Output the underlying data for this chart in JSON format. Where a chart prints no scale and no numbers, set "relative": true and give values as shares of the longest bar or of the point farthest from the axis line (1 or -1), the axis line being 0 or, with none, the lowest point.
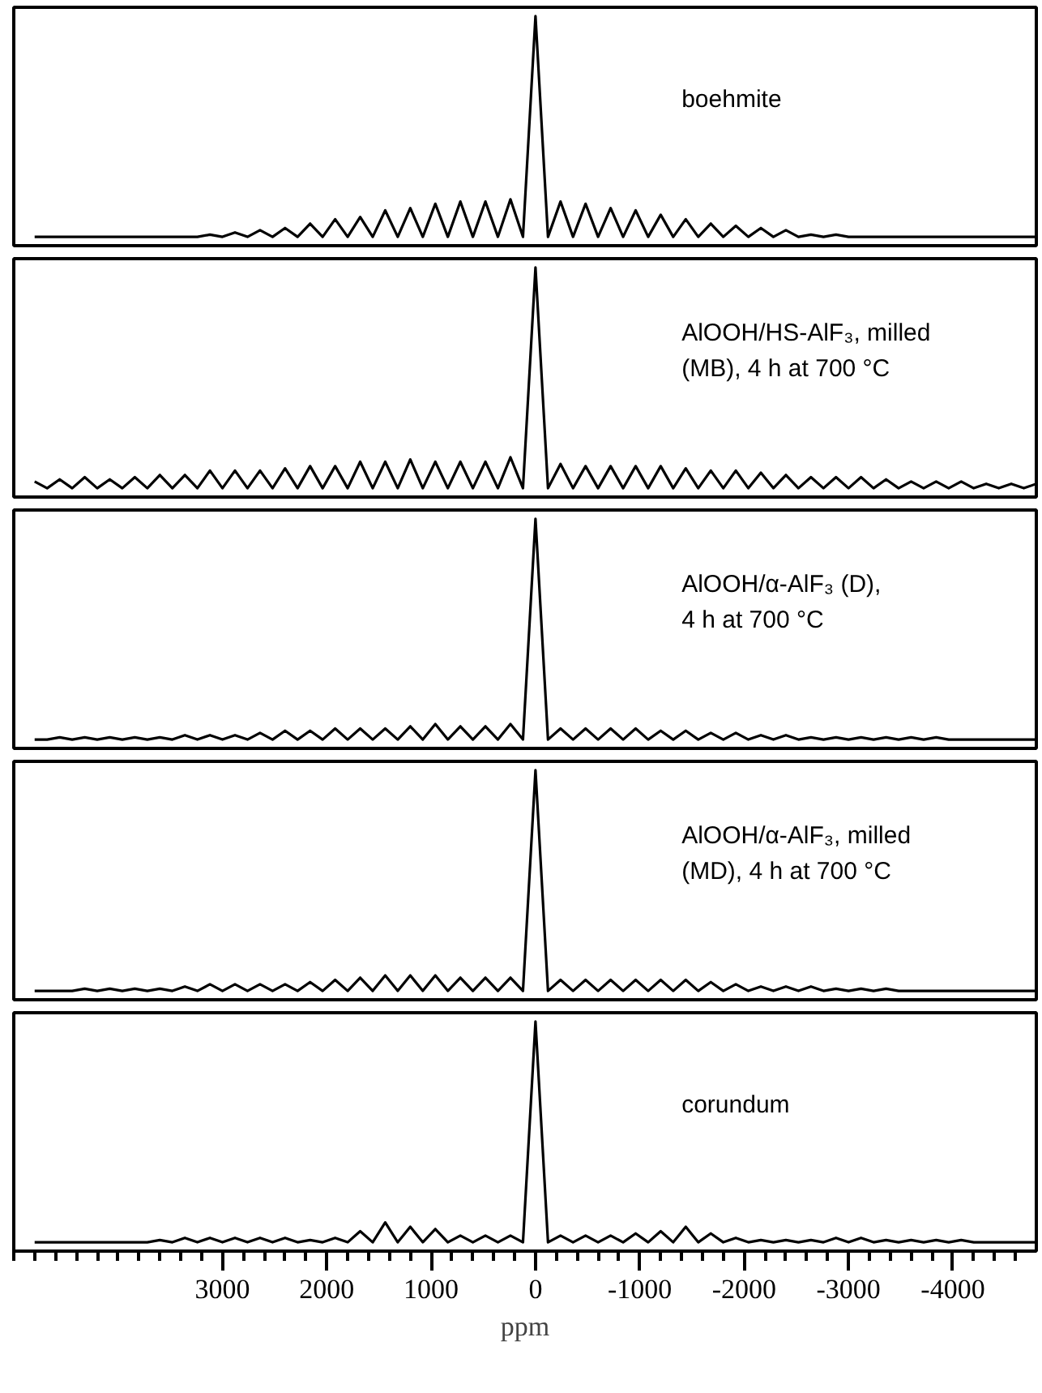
{
  "chart_data": [
    {
      "type": "line",
      "relative": true,
      "tick_labels": false,
      "xlim": [
        5000,
        -4800
      ],
      "x": [
        4800,
        4680,
        4560,
        4440,
        4320,
        4200,
        4080,
        3960,
        3840,
        3720,
        3600,
        3480,
        3360,
        3240,
        3120,
        3000,
        2880,
        2760,
        2640,
        2520,
        2400,
        2280,
        2160,
        2040,
        1920,
        1800,
        1680,
        1560,
        1440,
        1320,
        1200,
        1080,
        960,
        840,
        720,
        600,
        480,
        360,
        240,
        120,
        0,
        -120,
        -240,
        -360,
        -480,
        -600,
        -720,
        -840,
        -960,
        -1080,
        -1200,
        -1320,
        -1440,
        -1560,
        -1680,
        -1800,
        -1920,
        -2040,
        -2160,
        -2280,
        -2400,
        -2520,
        -2640,
        -2760,
        -2880,
        -3000,
        -3120,
        -3240,
        -3360,
        -3480,
        -3600,
        -3720,
        -3840,
        -3960,
        -4080,
        -4200,
        -4320,
        -4440,
        -4560,
        -4680,
        -4800
      ],
      "series": [
        {
          "name": "boehmite",
          "color": "#000000",
          "values": [
            0,
            0,
            0,
            0,
            0,
            0,
            0,
            0,
            0,
            0,
            0,
            0,
            0,
            0,
            0.01,
            0,
            0.02,
            0,
            0.03,
            0,
            0.04,
            0,
            0.06,
            0,
            0.08,
            0,
            0.09,
            0,
            0.12,
            0,
            0.13,
            0,
            0.15,
            0,
            0.16,
            0,
            0.16,
            0,
            0.17,
            0,
            1,
            0,
            0.16,
            0,
            0.15,
            0,
            0.13,
            0,
            0.12,
            0,
            0.1,
            0,
            0.08,
            0,
            0.06,
            0,
            0.05,
            0,
            0.04,
            0,
            0.03,
            0,
            0.01,
            0,
            0.01,
            0,
            0,
            0,
            0,
            0,
            0,
            0,
            0,
            0,
            0,
            0,
            0,
            0,
            0,
            0,
            0
          ]
        }
      ]
    },
    {
      "type": "line",
      "relative": true,
      "tick_labels": false,
      "xlim": [
        5000,
        -4800
      ],
      "x": [
        4800,
        4680,
        4560,
        4440,
        4320,
        4200,
        4080,
        3960,
        3840,
        3720,
        3600,
        3480,
        3360,
        3240,
        3120,
        3000,
        2880,
        2760,
        2640,
        2520,
        2400,
        2280,
        2160,
        2040,
        1920,
        1800,
        1680,
        1560,
        1440,
        1320,
        1200,
        1080,
        960,
        840,
        720,
        600,
        480,
        360,
        240,
        120,
        0,
        -120,
        -240,
        -360,
        -480,
        -600,
        -720,
        -840,
        -960,
        -1080,
        -1200,
        -1320,
        -1440,
        -1560,
        -1680,
        -1800,
        -1920,
        -2040,
        -2160,
        -2280,
        -2400,
        -2520,
        -2640,
        -2760,
        -2880,
        -3000,
        -3120,
        -3240,
        -3360,
        -3480,
        -3600,
        -3720,
        -3840,
        -3960,
        -4080,
        -4200,
        -4320,
        -4440,
        -4560,
        -4680,
        -4800
      ],
      "series": [
        {
          "name": "AlOOH/HS-AlF₃, milled\n(MB), 4 h at 700 °C",
          "color": "#000000",
          "values": [
            0.03,
            0,
            0.04,
            0,
            0.05,
            0,
            0.04,
            0,
            0.05,
            0,
            0.06,
            0,
            0.06,
            0,
            0.08,
            0,
            0.08,
            0,
            0.08,
            0,
            0.09,
            0,
            0.1,
            0,
            0.1,
            0,
            0.12,
            0,
            0.12,
            0,
            0.13,
            0,
            0.12,
            0,
            0.12,
            0,
            0.12,
            0,
            0.14,
            0,
            1,
            0,
            0.11,
            0,
            0.1,
            0,
            0.1,
            0,
            0.1,
            0,
            0.1,
            0,
            0.09,
            0,
            0.08,
            0,
            0.08,
            0,
            0.07,
            0,
            0.06,
            0,
            0.05,
            0,
            0.05,
            0,
            0.05,
            0,
            0.04,
            0,
            0.03,
            0,
            0.03,
            0,
            0.03,
            0,
            0.02,
            0,
            0.02,
            0,
            0.02
          ]
        }
      ]
    },
    {
      "type": "line",
      "relative": true,
      "tick_labels": false,
      "xlim": [
        5000,
        -4800
      ],
      "x": [
        4800,
        4680,
        4560,
        4440,
        4320,
        4200,
        4080,
        3960,
        3840,
        3720,
        3600,
        3480,
        3360,
        3240,
        3120,
        3000,
        2880,
        2760,
        2640,
        2520,
        2400,
        2280,
        2160,
        2040,
        1920,
        1800,
        1680,
        1560,
        1440,
        1320,
        1200,
        1080,
        960,
        840,
        720,
        600,
        480,
        360,
        240,
        120,
        0,
        -120,
        -240,
        -360,
        -480,
        -600,
        -720,
        -840,
        -960,
        -1080,
        -1200,
        -1320,
        -1440,
        -1560,
        -1680,
        -1800,
        -1920,
        -2040,
        -2160,
        -2280,
        -2400,
        -2520,
        -2640,
        -2760,
        -2880,
        -3000,
        -3120,
        -3240,
        -3360,
        -3480,
        -3600,
        -3720,
        -3840,
        -3960,
        -4080,
        -4200,
        -4320,
        -4440,
        -4560,
        -4680,
        -4800
      ],
      "series": [
        {
          "name": "AlOOH/α-AlF₃ (D),\n4 h at 700 °C",
          "color": "#000000",
          "values": [
            0,
            0,
            0.01,
            0,
            0.01,
            0,
            0.01,
            0,
            0.01,
            0,
            0.01,
            0,
            0.02,
            0,
            0.02,
            0,
            0.02,
            0,
            0.03,
            0,
            0.04,
            0,
            0.04,
            0,
            0.05,
            0,
            0.05,
            0,
            0.05,
            0,
            0.06,
            0,
            0.07,
            0,
            0.06,
            0,
            0.06,
            0,
            0.07,
            0,
            1,
            0,
            0.05,
            0,
            0.05,
            0,
            0.05,
            0,
            0.05,
            0,
            0.04,
            0,
            0.04,
            0,
            0.03,
            0,
            0.03,
            0,
            0.02,
            0,
            0.02,
            0,
            0.01,
            0,
            0.01,
            0,
            0.01,
            0,
            0.01,
            0,
            0.01,
            0,
            0.01,
            0,
            0,
            0,
            0,
            0,
            0,
            0,
            0
          ]
        }
      ]
    },
    {
      "type": "line",
      "relative": true,
      "tick_labels": false,
      "xlim": [
        5000,
        -4800
      ],
      "x": [
        4800,
        4680,
        4560,
        4440,
        4320,
        4200,
        4080,
        3960,
        3840,
        3720,
        3600,
        3480,
        3360,
        3240,
        3120,
        3000,
        2880,
        2760,
        2640,
        2520,
        2400,
        2280,
        2160,
        2040,
        1920,
        1800,
        1680,
        1560,
        1440,
        1320,
        1200,
        1080,
        960,
        840,
        720,
        600,
        480,
        360,
        240,
        120,
        0,
        -120,
        -240,
        -360,
        -480,
        -600,
        -720,
        -840,
        -960,
        -1080,
        -1200,
        -1320,
        -1440,
        -1560,
        -1680,
        -1800,
        -1920,
        -2040,
        -2160,
        -2280,
        -2400,
        -2520,
        -2640,
        -2760,
        -2880,
        -3000,
        -3120,
        -3240,
        -3360,
        -3480,
        -3600,
        -3720,
        -3840,
        -3960,
        -4080,
        -4200,
        -4320,
        -4440,
        -4560,
        -4680,
        -4800
      ],
      "series": [
        {
          "name": "AlOOH/α-AlF₃, milled\n(MD), 4 h at 700 °C",
          "color": "#000000",
          "values": [
            0,
            0,
            0,
            0,
            0.01,
            0,
            0.01,
            0,
            0.01,
            0,
            0.01,
            0,
            0.02,
            0,
            0.03,
            0,
            0.03,
            0,
            0.03,
            0,
            0.03,
            0,
            0.04,
            0,
            0.05,
            0,
            0.06,
            0,
            0.07,
            0,
            0.07,
            0,
            0.07,
            0,
            0.06,
            0,
            0.06,
            0,
            0.06,
            0,
            1,
            0,
            0.05,
            0,
            0.05,
            0,
            0.05,
            0,
            0.05,
            0,
            0.05,
            0,
            0.05,
            0,
            0.04,
            0,
            0.03,
            0,
            0.02,
            0,
            0.02,
            0,
            0.02,
            0,
            0.01,
            0,
            0.01,
            0,
            0.01,
            0,
            0,
            0,
            0,
            0,
            0,
            0,
            0,
            0,
            0,
            0,
            0
          ]
        }
      ]
    },
    {
      "type": "line",
      "relative": true,
      "tick_labels": "x",
      "xlabel": "ppm",
      "xlim": [
        5000,
        -4800
      ],
      "xticks": [
        3000,
        2000,
        1000,
        0,
        -1000,
        -2000,
        -3000,
        -4000
      ],
      "x": [
        4800,
        4680,
        4560,
        4440,
        4320,
        4200,
        4080,
        3960,
        3840,
        3720,
        3600,
        3480,
        3360,
        3240,
        3120,
        3000,
        2880,
        2760,
        2640,
        2520,
        2400,
        2280,
        2160,
        2040,
        1920,
        1800,
        1680,
        1560,
        1440,
        1320,
        1200,
        1080,
        960,
        840,
        720,
        600,
        480,
        360,
        240,
        120,
        0,
        -120,
        -240,
        -360,
        -480,
        -600,
        -720,
        -840,
        -960,
        -1080,
        -1200,
        -1320,
        -1440,
        -1560,
        -1680,
        -1800,
        -1920,
        -2040,
        -2160,
        -2280,
        -2400,
        -2520,
        -2640,
        -2760,
        -2880,
        -3000,
        -3120,
        -3240,
        -3360,
        -3480,
        -3600,
        -3720,
        -3840,
        -3960,
        -4080,
        -4200,
        -4320,
        -4440,
        -4560,
        -4680,
        -4800
      ],
      "series": [
        {
          "name": "corundum",
          "color": "#000000",
          "values": [
            0,
            0,
            0,
            0,
            0,
            0,
            0,
            0,
            0,
            0,
            0.01,
            0,
            0.02,
            0,
            0.02,
            0,
            0.02,
            0,
            0.02,
            0,
            0.02,
            0,
            0.01,
            0,
            0.02,
            0,
            0.05,
            0,
            0.09,
            0,
            0.07,
            0,
            0.06,
            0,
            0.03,
            0,
            0.03,
            0,
            0.03,
            0,
            1,
            0,
            0.03,
            0,
            0.03,
            0,
            0.03,
            0,
            0.04,
            0,
            0.05,
            0,
            0.07,
            0,
            0.04,
            0,
            0.02,
            0,
            0.01,
            0,
            0.01,
            0,
            0.01,
            0,
            0.02,
            0,
            0.02,
            0,
            0.01,
            0,
            0.01,
            0,
            0.01,
            0,
            0.01,
            0,
            0,
            0,
            0,
            0,
            0
          ]
        }
      ]
    }
  ]
}
